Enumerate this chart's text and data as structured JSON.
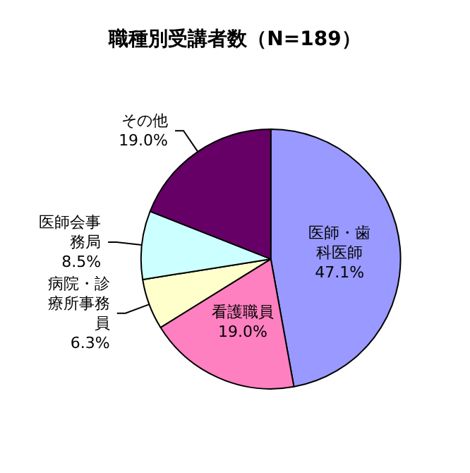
{
  "chart_data": {
    "type": "pie",
    "title": "職種別受講者数（N=189）",
    "categories": [
      "医師・歯科医師",
      "看護職員",
      "病院・診療所事務員",
      "医師会事務局",
      "その他"
    ],
    "values": [
      47.1,
      19.0,
      6.3,
      8.5,
      19.0
    ],
    "value_labels": [
      "47.1%",
      "19.0%",
      "6.3%",
      "8.5%",
      "19.0%"
    ],
    "colors": [
      "#9999ff",
      "#ff80c0",
      "#ffffcc",
      "#ccffff",
      "#660066"
    ],
    "legend": false
  }
}
